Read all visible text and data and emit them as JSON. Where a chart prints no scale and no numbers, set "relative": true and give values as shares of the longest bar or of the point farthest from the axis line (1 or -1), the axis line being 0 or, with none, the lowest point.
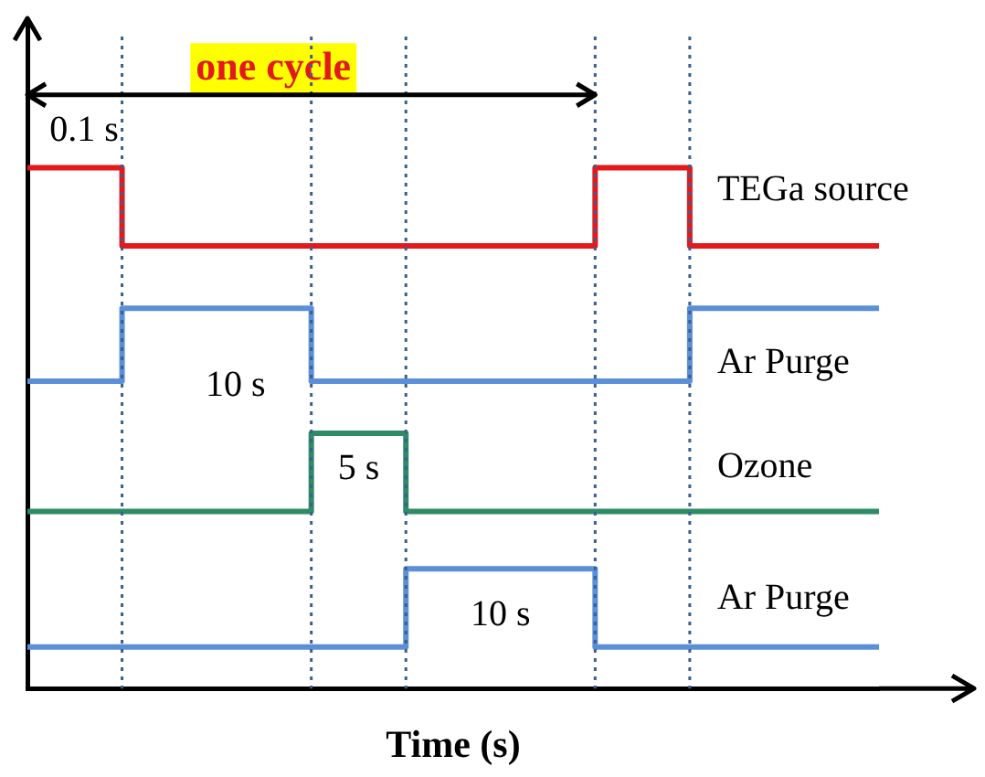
{
  "chart_data": {
    "type": "step",
    "relative": true,
    "xlabel": "Time (s)",
    "categories": [
      null,
      null,
      null,
      null,
      null,
      null,
      null,
      null,
      null,
      null
    ],
    "grid": "x",
    "legend": false,
    "marker": "none",
    "line_style": "solid",
    "series": [
      {
        "name": "TEGa source",
        "color": "#e3191c",
        "values": [
          1,
          0.85,
          0.85,
          0.85,
          0.85,
          0.85,
          1,
          0.85,
          0.85,
          0.85
        ]
      },
      {
        "name": "Ar Purge",
        "color": "#5b8fd8",
        "values": [
          0.59,
          0.73,
          0.73,
          0.59,
          0.59,
          0.59,
          0.59,
          0.73,
          0.73,
          0.73
        ]
      },
      {
        "name": "Ozone",
        "color": "#2e8b66",
        "values": [
          0.34,
          0.34,
          0.34,
          0.49,
          0.34,
          0.34,
          0.34,
          0.34,
          0.34,
          0.34
        ]
      },
      {
        "name": "Ar Purge",
        "color": "#5b8fd8",
        "values": [
          0.08,
          0.08,
          0.08,
          0.08,
          0.23,
          0.23,
          0.08,
          0.08,
          0.08,
          0.08
        ]
      }
    ],
    "annotations": [
      "one cycle",
      "0.1 s",
      "10 s",
      "5 s",
      "10 s"
    ]
  }
}
